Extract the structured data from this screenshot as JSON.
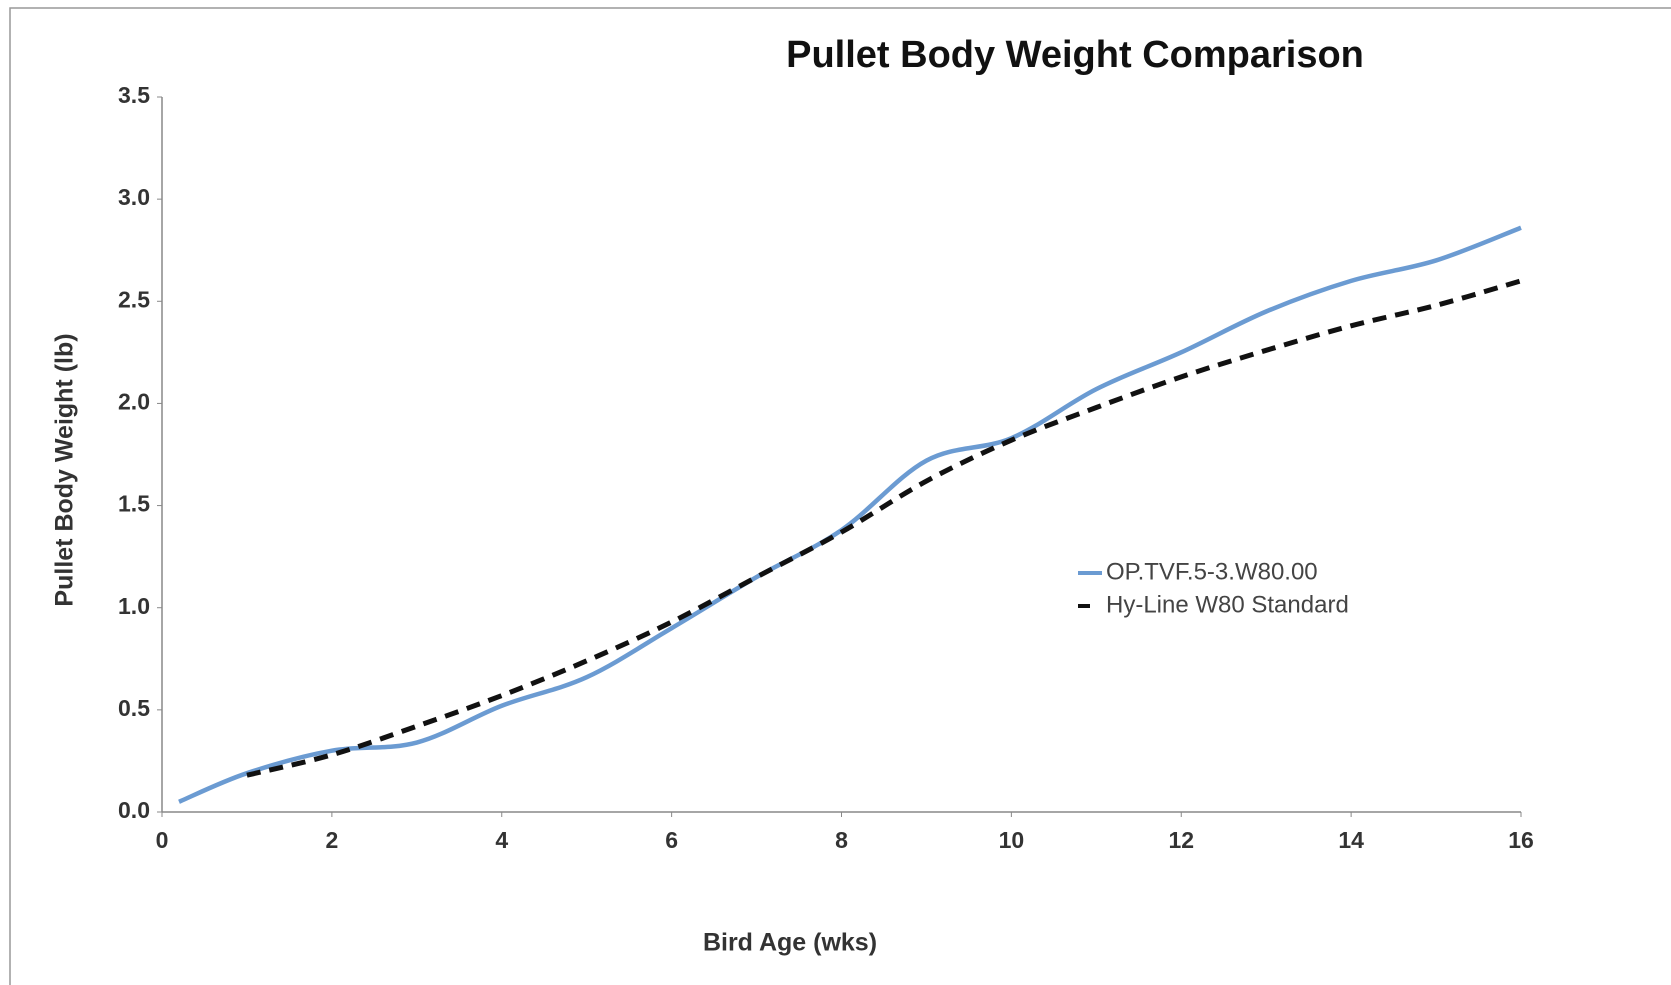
{
  "chart_data": {
    "type": "line",
    "title": "Pullet Body Weight Comparison",
    "x_label": "Bird Age (wks)",
    "y_label": "Pullet Body Weight (lb)",
    "xlim": [
      0,
      16
    ],
    "xticks": [
      0,
      2,
      4,
      6,
      8,
      10,
      12,
      14,
      16
    ],
    "ylim": [
      0,
      3.5
    ],
    "yticks": [
      {
        "value": 0,
        "label": "0.0"
      },
      0.5,
      {
        "value": 1,
        "label": "1.0"
      },
      1.5,
      {
        "value": 2,
        "label": "2.0"
      },
      2.5,
      {
        "value": 3,
        "label": "3.0"
      },
      3.5
    ],
    "grid": false,
    "legend": "right",
    "series": [
      {
        "name": "OP.TVF.5-3.W80.00",
        "color": "#6b9bd2",
        "dash": false,
        "x": [
          0.2,
          1,
          2,
          3,
          4,
          5,
          6,
          7,
          8,
          9,
          10,
          11,
          12,
          13,
          14,
          15,
          16
        ],
        "values": [
          0.05,
          0.19,
          0.3,
          0.34,
          0.52,
          0.66,
          0.9,
          1.15,
          1.38,
          1.72,
          1.83,
          2.07,
          2.25,
          2.45,
          2.6,
          2.7,
          2.86
        ]
      },
      {
        "name": "Hy-Line W80 Standard",
        "color": "#111111",
        "dash": true,
        "x": [
          1,
          2,
          3,
          4,
          5,
          6,
          7,
          8,
          9,
          10,
          11,
          12,
          13,
          14,
          15,
          16
        ],
        "values": [
          0.18,
          0.28,
          0.42,
          0.57,
          0.74,
          0.93,
          1.15,
          1.37,
          1.62,
          1.82,
          1.98,
          2.13,
          2.26,
          2.38,
          2.48,
          2.6
        ]
      }
    ]
  }
}
